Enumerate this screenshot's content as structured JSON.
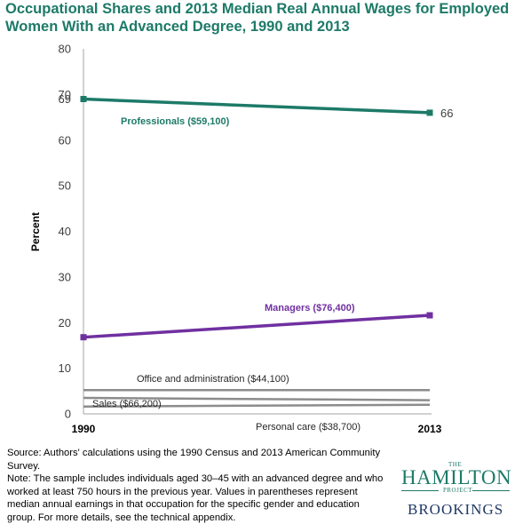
{
  "title": "Occupational Shares and 2013 Median Real Annual Wages for Employed Women With an Advanced Degree, 1990 and 2013",
  "chart_data": {
    "type": "line",
    "title": "Occupational Shares and 2013 Median Real Annual Wages for Employed Women With an Advanced Degree, 1990 and 2013",
    "xlabel": "",
    "ylabel": "Percent",
    "x": [
      "1990",
      "2013"
    ],
    "ylim": [
      0,
      80
    ],
    "yticks": [
      "0",
      "10",
      "20",
      "30",
      "40",
      "50",
      "60",
      "70",
      "80"
    ],
    "grid": false,
    "series": [
      {
        "name": "Professionals ($59,100)",
        "values": [
          69,
          66
        ],
        "color": "#1d7a68",
        "start_label": "69",
        "end_label": "66"
      },
      {
        "name": "Managers ($76,400)",
        "values": [
          16.8,
          21.6
        ],
        "color": "#7030a0"
      },
      {
        "name": "Office and administration ($44,100)",
        "values": [
          5.2,
          5.2
        ],
        "color": "#8c8c8c"
      },
      {
        "name": "Sales ($66,200)",
        "values": [
          3.5,
          3.0
        ],
        "color": "#8c8c8c"
      },
      {
        "name": "Personal care ($38,700)",
        "values": [
          1.6,
          2.0
        ],
        "color": "#8c8c8c"
      }
    ]
  },
  "notes": {
    "source": "Source: Authors' calculations using the 1990 Census and 2013 American Community Survey.",
    "note": "Note: The sample includes individuals aged 30–45 with an advanced degree  and who worked at least 750 hours in the previous year. Values in parentheses represent median annual earnings in that occupation for the specific gender and education group. For more details, see the technical appendix."
  },
  "logo": {
    "the": "THE",
    "hamilton": "HAMILTON",
    "project": "PROJECT",
    "brookings": "BROOKINGS"
  }
}
